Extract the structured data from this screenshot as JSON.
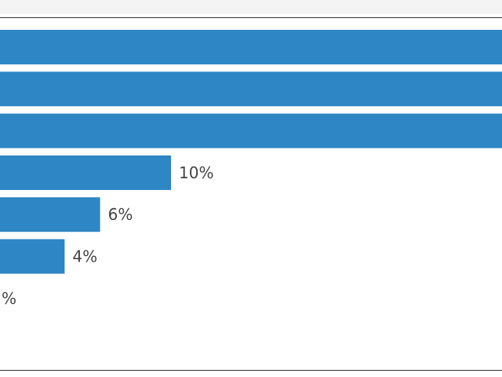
{
  "chart_data": {
    "type": "bar",
    "orientation": "horizontal",
    "title": "",
    "xlabel": "",
    "ylabel": "",
    "categories": [
      "",
      "",
      "",
      "",
      "",
      "",
      ""
    ],
    "values": [
      null,
      null,
      null,
      10,
      6,
      4,
      0
    ],
    "value_labels": [
      "",
      "",
      "",
      "10%",
      "6%",
      "4%",
      "%"
    ],
    "legend": "none",
    "grid": false,
    "bar_color": "#2e86c4",
    "note": ""
  }
}
